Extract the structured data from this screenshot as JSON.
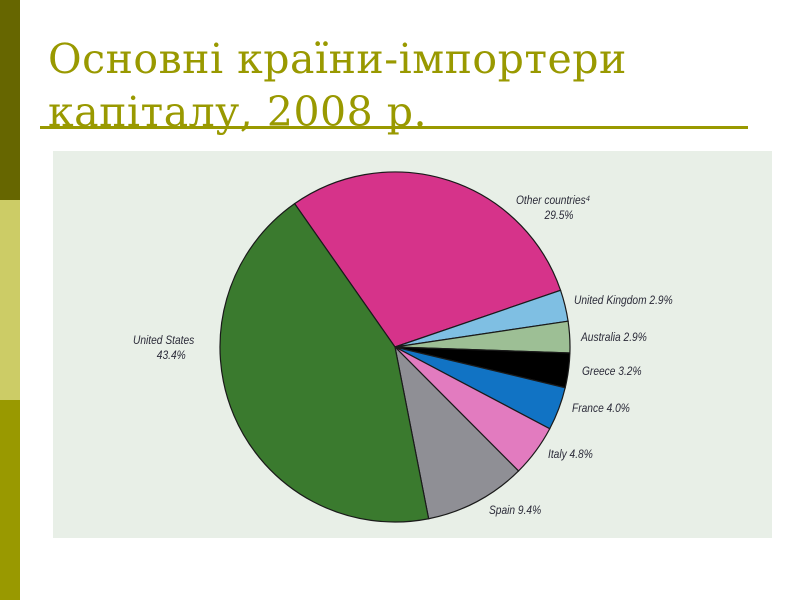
{
  "slide": {
    "title_line1": "Основні країни-імпортери",
    "title_line2": "капіталу, 2008 р.",
    "colors": {
      "title": "#999900",
      "sidebar_top": "#666600",
      "sidebar_mid": "#cccc66",
      "sidebar_bottom": "#999900",
      "panel_bg": "#e8efe7"
    }
  },
  "labels": {
    "other_name": "Other countries⁴",
    "other_value": "29.5%",
    "uk": "United Kingdom 2.9%",
    "australia": "Australia 2.9%",
    "greece": "Greece 3.2%",
    "france": "France 4.0%",
    "italy": "Italy 4.8%",
    "spain": "Spain 9.4%",
    "us_name": "United States",
    "us_value": "43.4%"
  },
  "chart_data": {
    "type": "pie",
    "title": "Основні країни-імпортери капіталу, 2008 р.",
    "categories": [
      "Other countries",
      "United Kingdom",
      "Australia",
      "Greece",
      "France",
      "Italy",
      "Spain",
      "United States"
    ],
    "values": [
      29.5,
      2.9,
      2.9,
      3.2,
      4.0,
      4.8,
      9.4,
      43.4
    ],
    "unit": "%",
    "colors": [
      "#d6338a",
      "#7fbfe3",
      "#9dbf95",
      "#000000",
      "#1173c4",
      "#e27bbf",
      "#8f8f95",
      "#3a7a2e"
    ],
    "start_angle_deg_screen": 235,
    "direction": "clockwise",
    "annotations": [
      "Other countries footnote marker: 4"
    ],
    "legend": "none (direct labels)"
  }
}
